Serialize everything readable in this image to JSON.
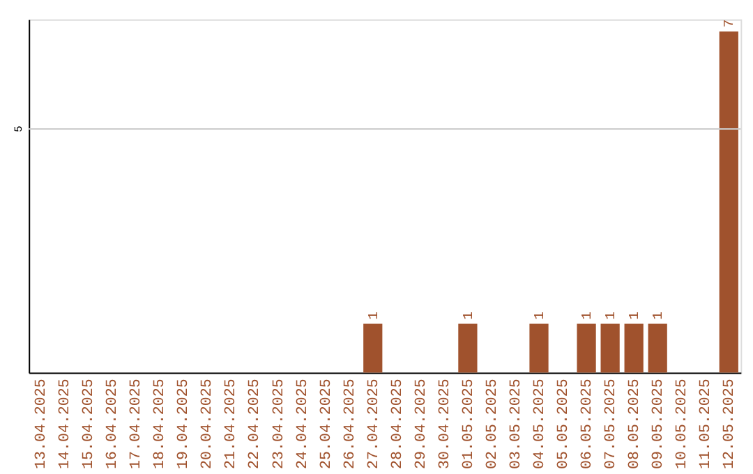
{
  "chart_data": {
    "type": "bar",
    "ylim": [
      0,
      7.25
    ],
    "categories": [
      "13.04.2025",
      "14.04.2025",
      "15.04.2025",
      "16.04.2025",
      "17.04.2025",
      "18.04.2025",
      "19.04.2025",
      "20.04.2025",
      "21.04.2025",
      "22.04.2025",
      "23.04.2025",
      "24.04.2025",
      "25.04.2025",
      "26.04.2025",
      "27.04.2025",
      "28.04.2025",
      "29.04.2025",
      "30.04.2025",
      "01.05.2025",
      "02.05.2025",
      "03.05.2025",
      "04.05.2025",
      "05.05.2025",
      "06.05.2025",
      "07.05.2025",
      "08.05.2025",
      "09.05.2025",
      "10.05.2025",
      "11.05.2025",
      "12.05.2025"
    ],
    "values": [
      null,
      null,
      null,
      null,
      null,
      null,
      null,
      null,
      null,
      null,
      null,
      null,
      null,
      null,
      1,
      null,
      null,
      null,
      1,
      null,
      null,
      1,
      null,
      1,
      1,
      1,
      1,
      null,
      null,
      7
    ],
    "value_labels": [
      null,
      null,
      null,
      null,
      null,
      null,
      null,
      null,
      null,
      null,
      null,
      null,
      null,
      null,
      "1",
      null,
      null,
      null,
      "1",
      null,
      null,
      "1",
      null,
      "1",
      "1",
      "1",
      "1",
      null,
      null,
      "7"
    ],
    "color": "#a0522d",
    "ref_lines": [
      {
        "axis": "y",
        "value": 5,
        "label": "5",
        "color": "#cccccc"
      }
    ]
  }
}
